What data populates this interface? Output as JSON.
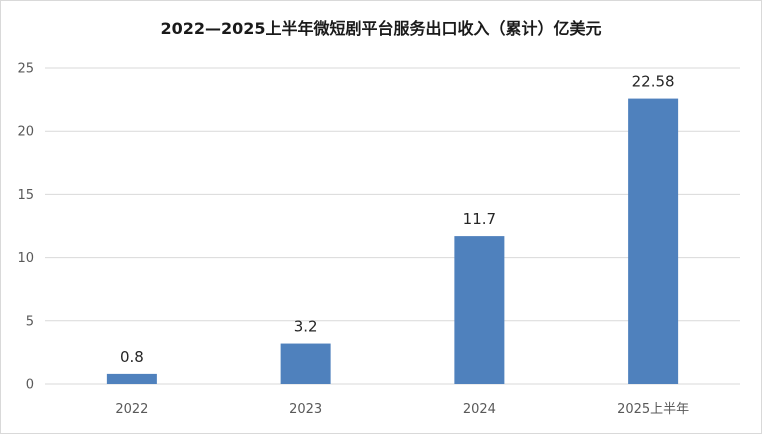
{
  "chart_data": {
    "type": "bar",
    "title": "2022—2025上半年微短剧平台服务出口收入（累计）亿美元",
    "categories": [
      "2022",
      "2023",
      "2024",
      "2025上半年"
    ],
    "values": [
      0.8,
      3.2,
      11.7,
      22.58
    ],
    "data_labels": [
      "0.8",
      "3.2",
      "11.7",
      "22.58"
    ],
    "xlabel": "",
    "ylabel": "",
    "ylim": [
      0,
      25
    ],
    "yticks": [
      0,
      5,
      10,
      15,
      20,
      25
    ],
    "grid": true,
    "legend": "none",
    "bar_color": "#4f81bd",
    "grid_color": "#d9d9d9"
  }
}
